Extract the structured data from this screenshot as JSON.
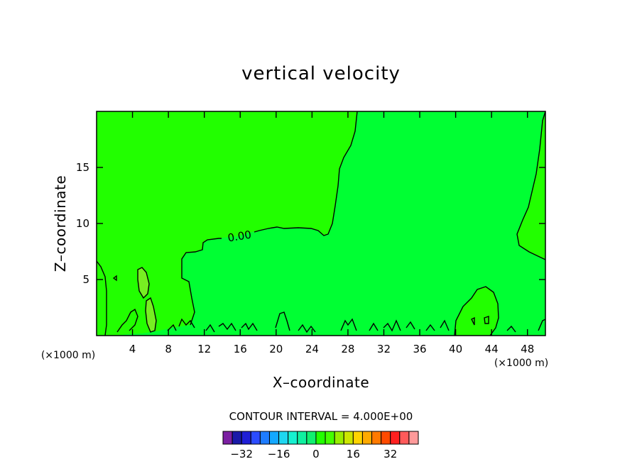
{
  "chart_data": {
    "type": "contour",
    "title": "vertical velocity",
    "xlabel": "X–coordinate",
    "ylabel": "Z–coordinate",
    "x_unit_left": "(×1000 m)",
    "x_unit_right": "(×1000 m)",
    "xlim": [
      0,
      50
    ],
    "ylim": [
      0,
      20
    ],
    "x_ticks": [
      4,
      8,
      12,
      16,
      20,
      24,
      28,
      32,
      36,
      40,
      44,
      48
    ],
    "y_ticks": [
      5,
      10,
      15
    ],
    "contour_label": "0.00",
    "contour_interval_text": "CONTOUR INTERVAL =  4.000E+00",
    "colorbar": {
      "colors": [
        "#7b1fa2",
        "#1a1aa8",
        "#1f1fd6",
        "#2b4cff",
        "#1e7cff",
        "#14a8ff",
        "#1fd6f0",
        "#16f0d0",
        "#10f0a0",
        "#10f070",
        "#22ff00",
        "#44ff00",
        "#99ee00",
        "#cce600",
        "#ffd400",
        "#ffaa00",
        "#ff7a00",
        "#ff4a00",
        "#ff2020",
        "#ff5a5a",
        "#ff9a9a"
      ],
      "labels": [
        "-32",
        "-16",
        "0",
        "16",
        "32"
      ],
      "label_values": [
        -32,
        -16,
        0,
        16,
        32
      ],
      "range": [
        -40,
        44
      ]
    },
    "fill_colors": {
      "negative_region": "#00ff33",
      "positive_region": "#22ff00",
      "positive_strong": "#77ee22"
    }
  }
}
